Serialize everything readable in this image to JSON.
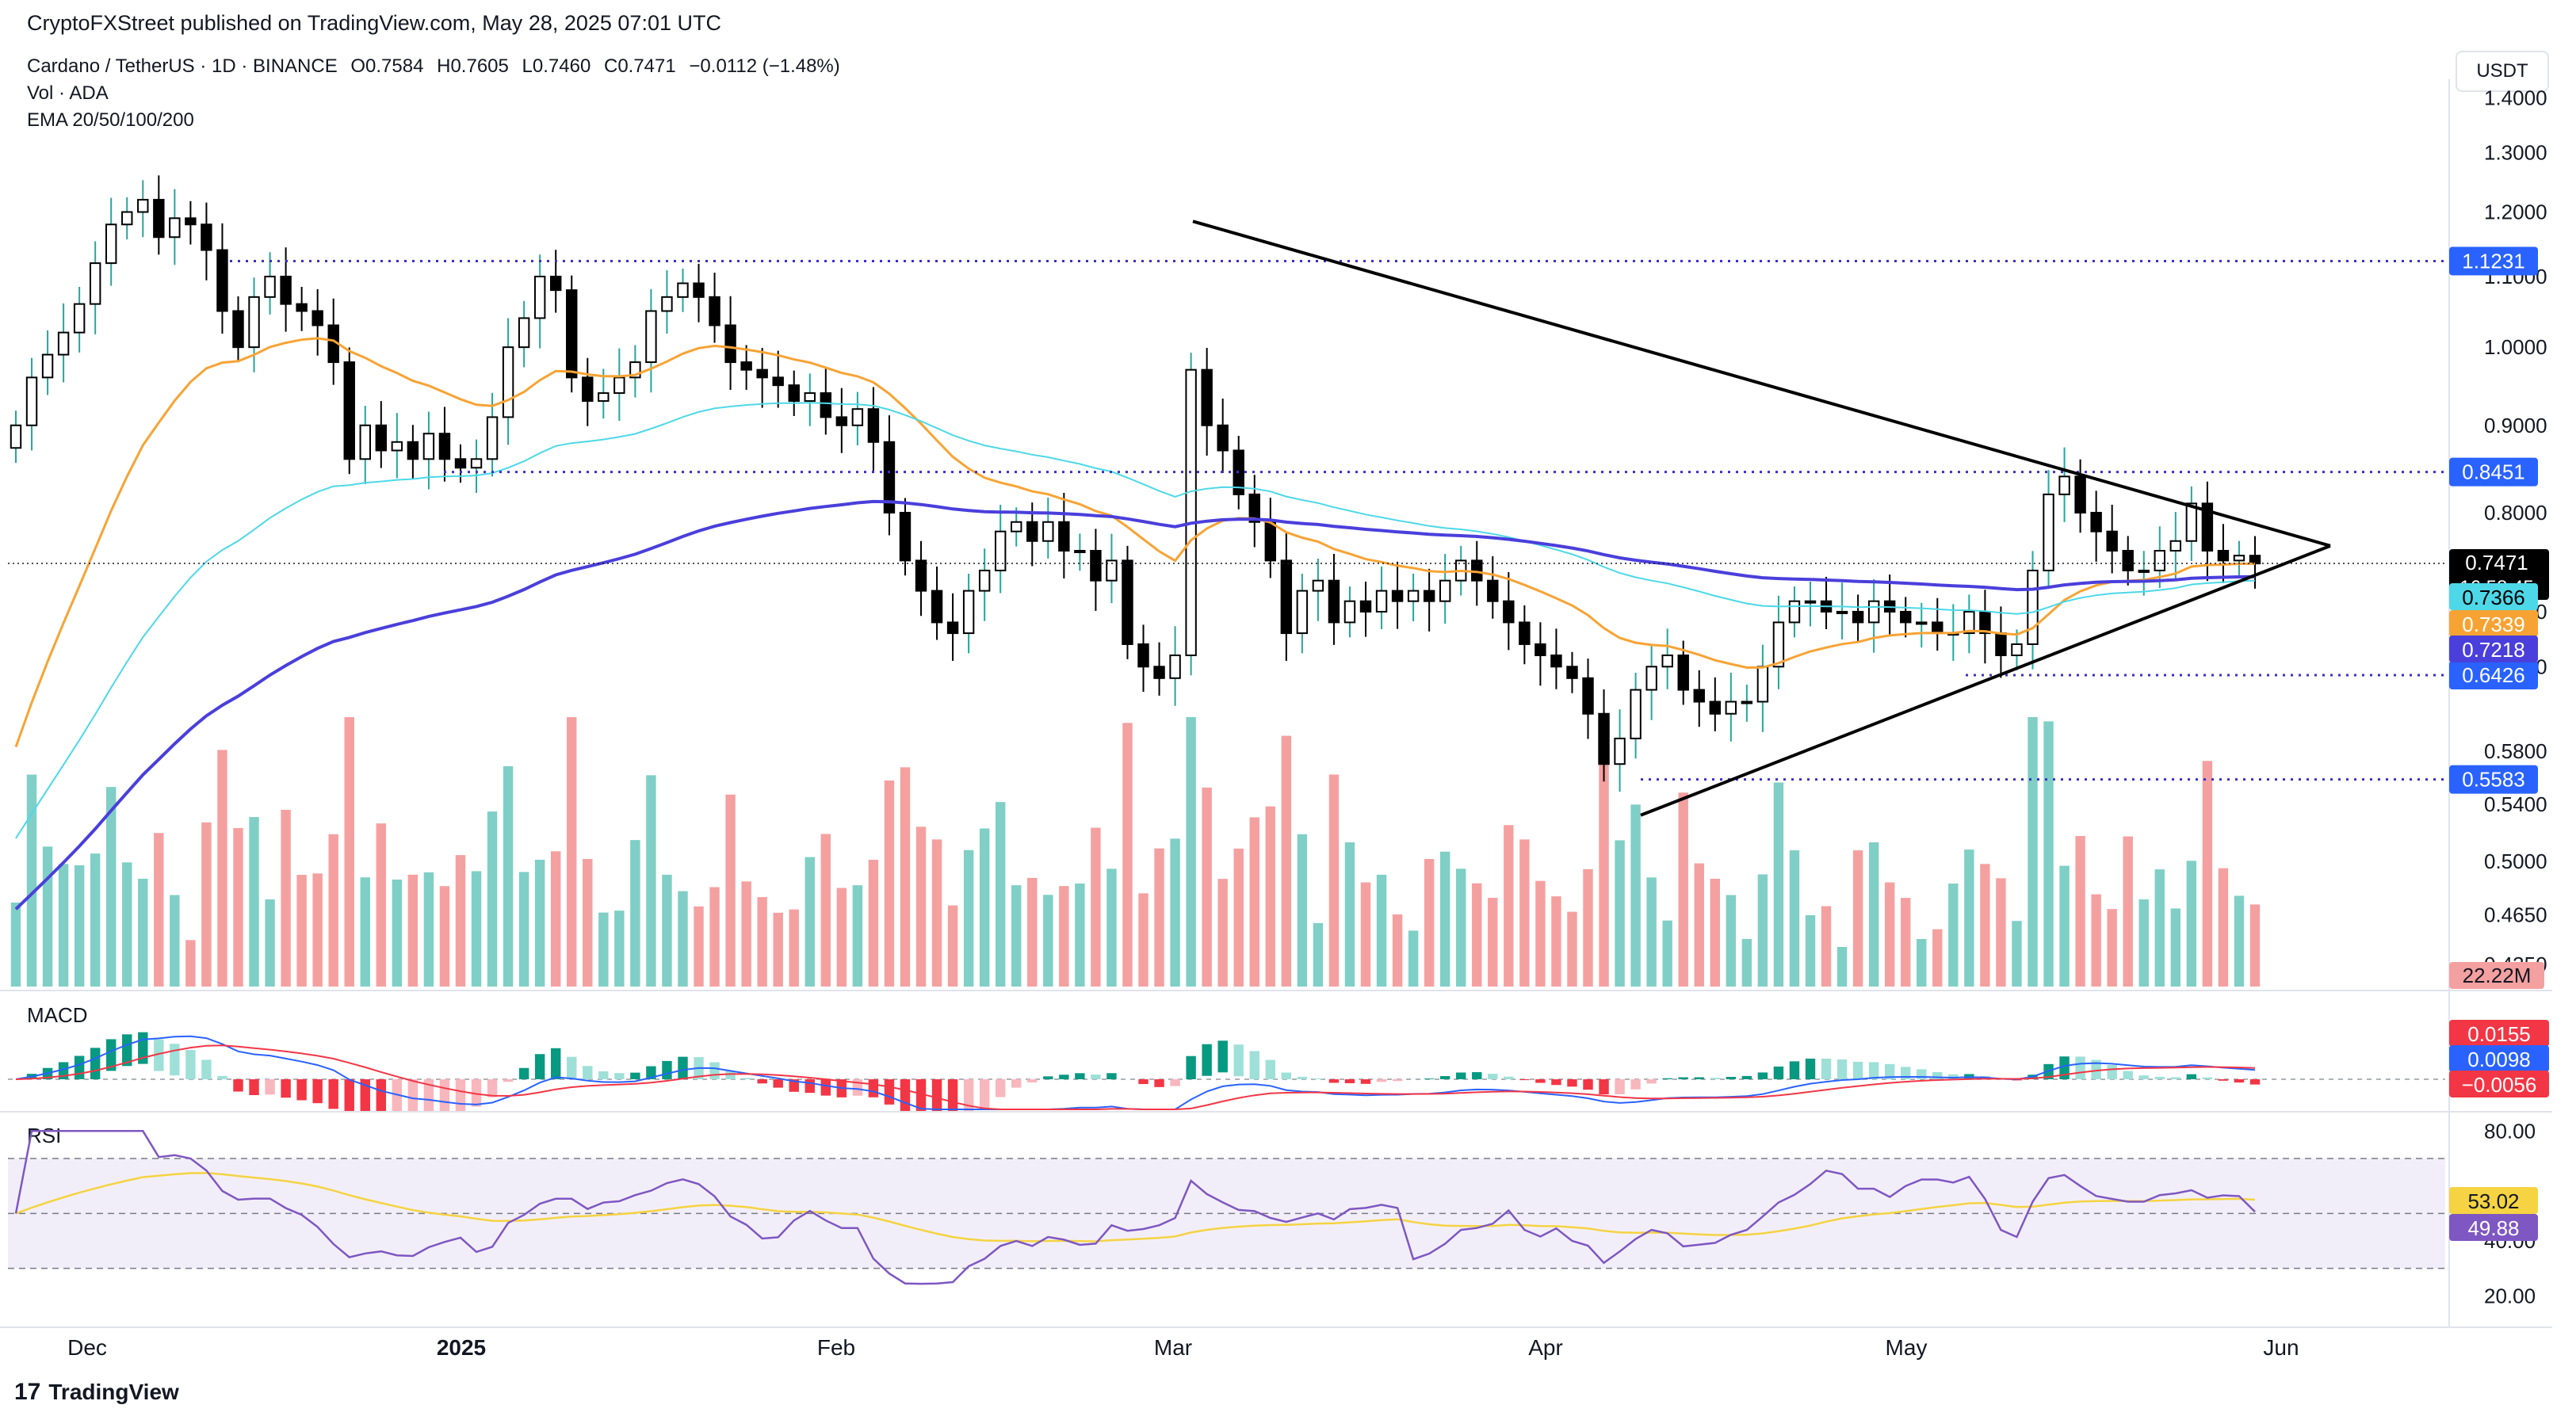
{
  "header": {
    "published": "CryptoFXStreet published on TradingView.com, May 28, 2025 07:01 UTC"
  },
  "legend": {
    "symbol": "Cardano / TetherUS · 1D · BINANCE",
    "open": "O0.7584",
    "high": "H0.7605",
    "low": "L0.7460",
    "close": "C0.7471",
    "change": "−0.0112 (−1.48%)",
    "vol": "Vol · ADA",
    "ema": "EMA 20/50/100/200"
  },
  "currency": "USDT",
  "footer": {
    "brand": "TradingView"
  },
  "colors": {
    "up": "#26a69a",
    "down": "#000000",
    "vol_up": "#7fcfc6",
    "vol_down": "#f5a0a0",
    "ema20": "#f7a334",
    "ema50": "#4dd8e8",
    "ema100": "#4a3fdb",
    "purple_level": "#3b2fc9",
    "macd_line": "#2962ff",
    "signal_line": "#f23645",
    "rsi_line": "#7e57c2",
    "rsi_ma": "#f5d342"
  },
  "chart_data": {
    "type": "candlestick",
    "title": "Cardano / TetherUS · 1D · BINANCE",
    "xlabel": "",
    "ylabel": "USDT",
    "x_ticks": [
      "Dec",
      "2025",
      "Feb",
      "Mar",
      "Apr",
      "May",
      "Jun"
    ],
    "y_ticks": [
      "1.4000",
      "1.3000",
      "1.2000",
      "1.1000",
      "1.0000",
      "0.9000",
      "0.8000",
      "0.7000",
      "0.6500",
      "0.5800",
      "0.5400",
      "0.5000",
      "0.4650",
      "0.4350"
    ],
    "y_scale": "log",
    "ylim": [
      0.42,
      1.42
    ],
    "price_series_close": [
      0.9,
      0.96,
      0.99,
      1.02,
      1.06,
      1.12,
      1.18,
      1.2,
      1.22,
      1.16,
      1.19,
      1.18,
      1.14,
      1.05,
      1.0,
      1.07,
      1.1,
      1.06,
      1.05,
      1.03,
      0.98,
      0.86,
      0.9,
      0.87,
      0.88,
      0.86,
      0.89,
      0.86,
      0.85,
      0.86,
      0.91,
      1.0,
      1.04,
      1.1,
      1.08,
      0.96,
      0.93,
      0.94,
      0.96,
      0.98,
      1.05,
      1.07,
      1.09,
      1.07,
      1.03,
      0.98,
      0.97,
      0.96,
      0.95,
      0.93,
      0.94,
      0.91,
      0.9,
      0.92,
      0.88,
      0.8,
      0.75,
      0.72,
      0.69,
      0.68,
      0.72,
      0.74,
      0.78,
      0.79,
      0.77,
      0.79,
      0.76,
      0.76,
      0.73,
      0.75,
      0.67,
      0.65,
      0.64,
      0.66,
      0.97,
      0.9,
      0.87,
      0.82,
      0.79,
      0.75,
      0.68,
      0.72,
      0.73,
      0.69,
      0.71,
      0.7,
      0.72,
      0.71,
      0.72,
      0.71,
      0.73,
      0.75,
      0.73,
      0.71,
      0.69,
      0.67,
      0.66,
      0.65,
      0.64,
      0.61,
      0.57,
      0.59,
      0.63,
      0.65,
      0.66,
      0.63,
      0.62,
      0.61,
      0.62,
      0.62,
      0.65,
      0.69,
      0.71,
      0.71,
      0.7,
      0.7,
      0.69,
      0.71,
      0.7,
      0.69,
      0.69,
      0.68,
      0.68,
      0.7,
      0.68,
      0.66,
      0.67,
      0.74,
      0.82,
      0.84,
      0.8,
      0.78,
      0.76,
      0.74,
      0.74,
      0.76,
      0.77,
      0.81,
      0.76,
      0.75,
      0.755,
      0.747
    ],
    "annotations": {
      "horizontal_levels": [
        "1.1231",
        "0.8451",
        "0.6426",
        "0.5583"
      ],
      "pattern": "symmetrical triangle"
    },
    "price_labels": {
      "last": "0.7471",
      "countdown": "16:58:45",
      "ema50": "0.7366",
      "ema20": "0.7339",
      "ema100": "0.7218",
      "level_0_6426": "0.6426",
      "volume": "22.22M"
    },
    "macd": {
      "label": "MACD",
      "values": [
        "0.0155",
        "0.0098",
        "−0.0056"
      ]
    },
    "rsi": {
      "label": "RSI",
      "values": [
        "53.02",
        "49.88"
      ],
      "y_ticks": [
        "80.00",
        "40.00",
        "20.00"
      ],
      "bands": [
        70,
        30
      ]
    }
  }
}
